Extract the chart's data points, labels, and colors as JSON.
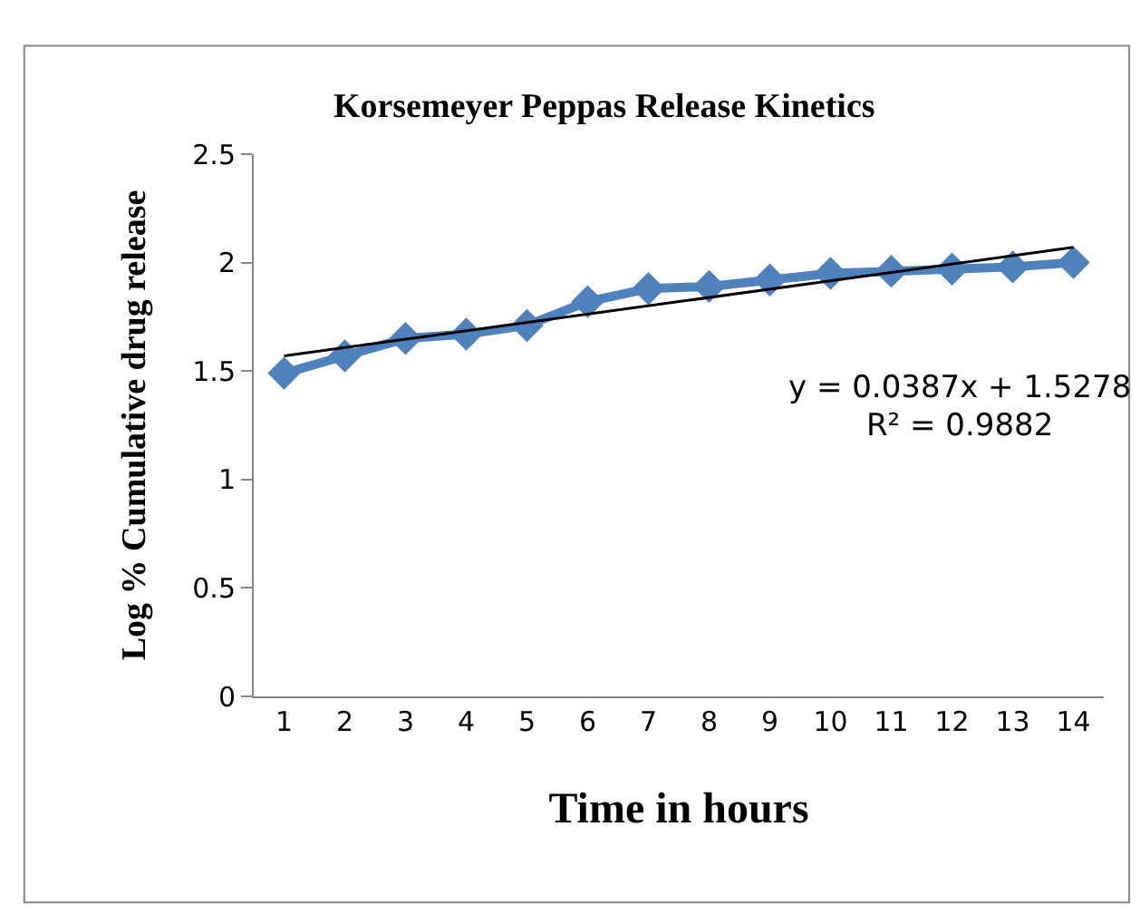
{
  "chart_data": {
    "type": "line",
    "title": "Korsemeyer Peppas Release Kinetics",
    "xlabel": "Time in hours",
    "ylabel": "Log % Cumulative drug release",
    "x": [
      1,
      2,
      3,
      4,
      5,
      6,
      7,
      8,
      9,
      10,
      11,
      12,
      13,
      14
    ],
    "series": [
      {
        "color": "#4f81bd",
        "marker": "diamond",
        "values": [
          1.49,
          1.57,
          1.65,
          1.67,
          1.71,
          1.82,
          1.88,
          1.89,
          1.92,
          1.95,
          1.96,
          1.97,
          1.98,
          2.0
        ]
      },
      {
        "color": "#000000",
        "marker": "none",
        "x": [
          1,
          14
        ],
        "values": [
          1.57,
          2.07
        ]
      }
    ],
    "annotations": [
      "y = 0.0387x + 1.5278",
      "R² = 0.9882"
    ],
    "xlim": [
      0.5,
      14.5
    ],
    "xticks": [
      1,
      2,
      3,
      4,
      5,
      6,
      7,
      8,
      9,
      10,
      11,
      12,
      13,
      14
    ],
    "ylim": [
      0,
      2.5
    ],
    "yticks": [
      0,
      0.5,
      1,
      1.5,
      2,
      2.5
    ],
    "grid": false,
    "legend": false
  }
}
